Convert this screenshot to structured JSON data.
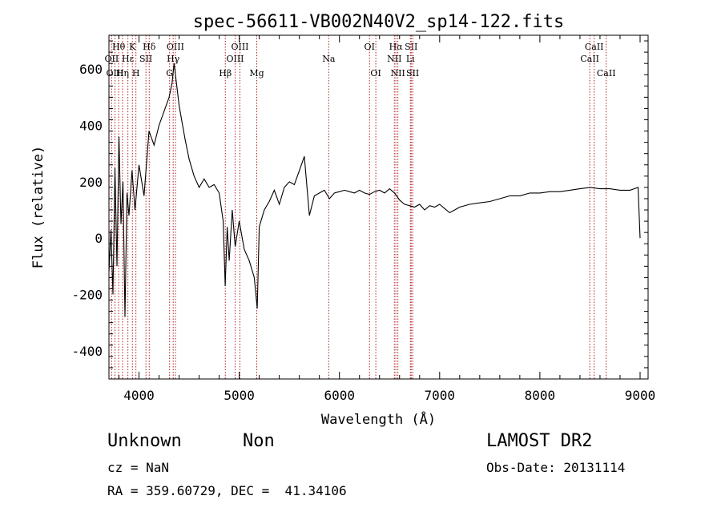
{
  "chart_data": {
    "type": "line",
    "title": "spec-56611-VB002N40V2_sp14-122.fits",
    "xlabel": "Wavelength (Å)",
    "ylabel": "Flux (relative)",
    "xlim": [
      3700,
      9080
    ],
    "ylim": [
      -500,
      720
    ],
    "xticks": [
      4000,
      5000,
      6000,
      7000,
      8000,
      9000
    ],
    "yticks": [
      -400,
      -200,
      0,
      200,
      400,
      600
    ],
    "grid": false,
    "line_color": "#000000",
    "marker_color": "#b22222",
    "series": [
      {
        "x": [
          3700,
          3720,
          3740,
          3760,
          3780,
          3800,
          3820,
          3840,
          3860,
          3880,
          3900,
          3930,
          3960,
          4000,
          4050,
          4100,
          4150,
          4200,
          4250,
          4300,
          4330,
          4350,
          4380,
          4400,
          4430,
          4460,
          4500,
          4550,
          4600,
          4650,
          4700,
          4750,
          4800,
          4840,
          4860,
          4880,
          4900,
          4930,
          4960,
          5000,
          5050,
          5100,
          5150,
          5180,
          5200,
          5250,
          5300,
          5350,
          5400,
          5450,
          5500,
          5550,
          5600,
          5650,
          5700,
          5750,
          5800,
          5850,
          5900,
          5950,
          6000,
          6050,
          6100,
          6150,
          6200,
          6250,
          6300,
          6350,
          6400,
          6450,
          6500,
          6550,
          6600,
          6650,
          6700,
          6750,
          6800,
          6850,
          6900,
          6950,
          7000,
          7050,
          7100,
          7150,
          7200,
          7300,
          7400,
          7500,
          7600,
          7700,
          7800,
          7900,
          8000,
          8100,
          8200,
          8300,
          8400,
          8500,
          8600,
          8700,
          8800,
          8900,
          8980,
          9000
        ],
        "y": [
          -120,
          30,
          -200,
          250,
          -100,
          360,
          50,
          200,
          -280,
          160,
          80,
          240,
          100,
          260,
          150,
          380,
          330,
          400,
          450,
          500,
          550,
          620,
          530,
          470,
          410,
          350,
          280,
          220,
          180,
          210,
          180,
          190,
          160,
          60,
          -170,
          40,
          -80,
          100,
          -30,
          60,
          -40,
          -80,
          -140,
          -250,
          40,
          100,
          130,
          170,
          120,
          180,
          200,
          190,
          240,
          290,
          80,
          150,
          160,
          170,
          140,
          160,
          165,
          170,
          165,
          160,
          170,
          160,
          155,
          165,
          170,
          160,
          175,
          160,
          135,
          120,
          115,
          110,
          120,
          100,
          115,
          110,
          120,
          105,
          90,
          100,
          110,
          120,
          125,
          130,
          140,
          150,
          150,
          160,
          160,
          165,
          165,
          170,
          175,
          180,
          175,
          175,
          170,
          170,
          180,
          0
        ]
      }
    ],
    "lines": [
      {
        "label": "Hθ",
        "x": 3797,
        "row": 1
      },
      {
        "label": "OII",
        "x": 3727,
        "row": 2
      },
      {
        "label": "OIII",
        "x": 3760,
        "row": 3
      },
      {
        "label": "K",
        "x": 3934,
        "row": 1
      },
      {
        "label": "Hε",
        "x": 3889,
        "row": 2
      },
      {
        "label": "Hη",
        "x": 3835,
        "row": 3
      },
      {
        "label": "Hδ",
        "x": 4102,
        "row": 1
      },
      {
        "label": "SII",
        "x": 4069,
        "row": 2
      },
      {
        "label": "H",
        "x": 3969,
        "row": 3
      },
      {
        "label": "OIII",
        "x": 4363,
        "row": 1
      },
      {
        "label": "Hγ",
        "x": 4341,
        "row": 2
      },
      {
        "label": "G",
        "x": 4305,
        "row": 3
      },
      {
        "label": "OIII",
        "x": 5007,
        "row": 1
      },
      {
        "label": "OIII",
        "x": 4959,
        "row": 2
      },
      {
        "label": "Hβ",
        "x": 4861,
        "row": 3
      },
      {
        "label": "Mg",
        "x": 5175,
        "row": 3
      },
      {
        "label": "Na",
        "x": 5893,
        "row": 2
      },
      {
        "label": "OI",
        "x": 6300,
        "row": 1
      },
      {
        "label": "OI",
        "x": 6363,
        "row": 3
      },
      {
        "label": "Hα",
        "x": 6563,
        "row": 1
      },
      {
        "label": "NII",
        "x": 6548,
        "row": 2
      },
      {
        "label": "NII",
        "x": 6583,
        "row": 3
      },
      {
        "label": "SII",
        "x": 6716,
        "row": 1
      },
      {
        "label": "Li",
        "x": 6708,
        "row": 2
      },
      {
        "label": "SII",
        "x": 6731,
        "row": 3
      },
      {
        "label": "CaII",
        "x": 8542,
        "row": 1
      },
      {
        "label": "CaII",
        "x": 8498,
        "row": 2
      },
      {
        "label": "CaII",
        "x": 8662,
        "row": 3
      }
    ]
  },
  "info": {
    "object_type": "Unknown",
    "object_class": "Non",
    "survey": "LAMOST DR2",
    "cz": "cz = NaN",
    "obs_date": "Obs-Date: 20131114",
    "coords": "RA = 359.60729, DEC =  41.34106"
  }
}
